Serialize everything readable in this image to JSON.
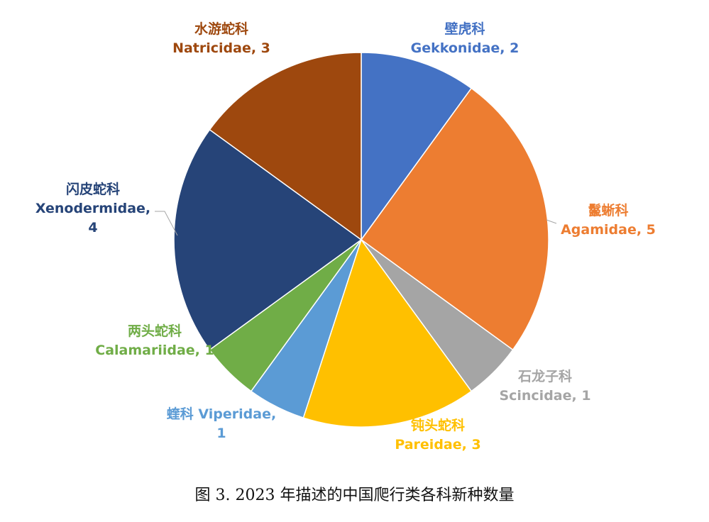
{
  "chart_data": {
    "type": "pie",
    "caption": "图 3. 2023 年描述的中国爬行类各科新种数量",
    "slices": [
      {
        "label_cn": "壁虎科",
        "label_en": "Gekkonidae, 2",
        "value": 2,
        "color": "#4472C4"
      },
      {
        "label_cn": "鬣蜥科",
        "label_en": "Agamidae, 5",
        "value": 5,
        "color": "#ED7D31"
      },
      {
        "label_cn": "石龙子科",
        "label_en": "Scincidae, 1",
        "value": 1,
        "color": "#A5A5A5"
      },
      {
        "label_cn": "钝头蛇科",
        "label_en": "Pareidae, 3",
        "value": 3,
        "color": "#FFC000"
      },
      {
        "label_cn": "蝰科 Viperidae,",
        "label_en": "1",
        "value": 1,
        "color": "#5B9BD5"
      },
      {
        "label_cn": "两头蛇科",
        "label_en": "Calamariidae, 1",
        "value": 1,
        "color": "#70AD47"
      },
      {
        "label_cn": "闪皮蛇科",
        "label_en": "Xenodermidae, 4",
        "value": 4,
        "color": "#264478"
      },
      {
        "label_cn": "水游蛇科",
        "label_en": "Natricidae, 3",
        "value": 3,
        "color": "#9E480E"
      }
    ]
  }
}
